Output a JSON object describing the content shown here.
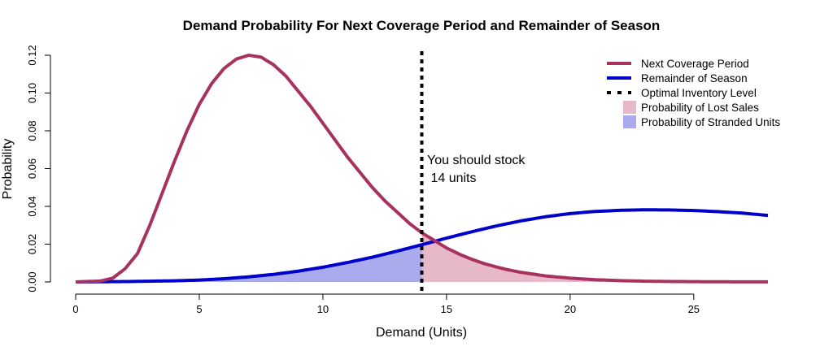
{
  "chart_data": {
    "type": "area",
    "title": "Demand Probability For Next Coverage Period and Remainder of Season",
    "xlabel": "Demand (Units)",
    "ylabel": "Probability",
    "xlim": [
      0,
      28
    ],
    "ylim": [
      0,
      0.12
    ],
    "x_ticks": [
      "0",
      "5",
      "10",
      "15",
      "20",
      "25"
    ],
    "y_ticks": [
      "0.00",
      "0.02",
      "0.04",
      "0.06",
      "0.08",
      "0.10",
      "0.12"
    ],
    "grid": false,
    "legend_position": "top-right",
    "optimal_inventory_level": 14,
    "annotation": {
      "line1": "You should stock",
      "line2": " 14 units"
    },
    "colors": {
      "next_period": "#a8325e",
      "remainder": "#0000cc",
      "optimal_line": "#000000",
      "lost_sales_fill": "#e6b8c8",
      "stranded_fill": "#a9abec"
    },
    "legend": [
      {
        "label": "Next Coverage Period",
        "kind": "line",
        "color": "#a8325e"
      },
      {
        "label": "Remainder of Season",
        "kind": "line",
        "color": "#0000cc"
      },
      {
        "label": "Optimal Inventory Level",
        "kind": "dashed",
        "color": "#000000"
      },
      {
        "label": "Probability of Lost Sales",
        "kind": "box",
        "color": "#e6b8c8"
      },
      {
        "label": "Probability of Stranded Units",
        "kind": "box",
        "color": "#a9abec"
      }
    ],
    "series": [
      {
        "name": "Next Coverage Period",
        "x": [
          0,
          1,
          1.5,
          2,
          2.5,
          3,
          3.5,
          4,
          4.5,
          5,
          5.5,
          6,
          6.5,
          7,
          7.5,
          8,
          8.5,
          9,
          9.5,
          10,
          10.5,
          11,
          11.5,
          12,
          12.5,
          13,
          13.5,
          14,
          14.5,
          15,
          15.5,
          16,
          16.5,
          17,
          17.5,
          18,
          19,
          20,
          21,
          22,
          23,
          24,
          25,
          26,
          27,
          28
        ],
        "y": [
          0.0,
          0.0005,
          0.002,
          0.007,
          0.015,
          0.03,
          0.047,
          0.064,
          0.08,
          0.094,
          0.105,
          0.113,
          0.118,
          0.12,
          0.119,
          0.115,
          0.109,
          0.101,
          0.093,
          0.084,
          0.075,
          0.066,
          0.058,
          0.05,
          0.043,
          0.037,
          0.031,
          0.026,
          0.022,
          0.018,
          0.0148,
          0.0121,
          0.0098,
          0.008,
          0.0064,
          0.0051,
          0.0032,
          0.002,
          0.0012,
          0.0007,
          0.0004,
          0.00025,
          0.00015,
          0.0001,
          5e-05,
          3e-05
        ]
      },
      {
        "name": "Remainder of Season",
        "x": [
          0,
          2,
          4,
          5,
          6,
          7,
          8,
          9,
          10,
          11,
          12,
          13,
          14,
          15,
          16,
          17,
          18,
          19,
          20,
          21,
          22,
          23,
          24,
          25,
          26,
          27,
          28
        ],
        "y": [
          0.0,
          0.0002,
          0.0006,
          0.001,
          0.0017,
          0.0027,
          0.004,
          0.0057,
          0.0078,
          0.0103,
          0.0131,
          0.0163,
          0.0197,
          0.0232,
          0.0265,
          0.0296,
          0.0323,
          0.0345,
          0.0362,
          0.0373,
          0.0379,
          0.0382,
          0.0381,
          0.0378,
          0.0372,
          0.0364,
          0.0352
        ]
      }
    ]
  }
}
